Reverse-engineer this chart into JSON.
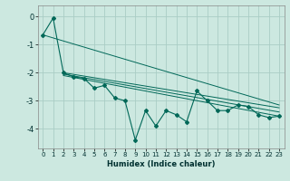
{
  "xlabel": "Humidex (Indice chaleur)",
  "ylabel": "",
  "bg_color": "#cce8e0",
  "grid_color": "#aacdc5",
  "line_color": "#006858",
  "xlim": [
    -0.5,
    23.5
  ],
  "ylim": [
    -4.7,
    0.4
  ],
  "yticks": [
    0,
    -1,
    -2,
    -3,
    -4
  ],
  "xticks": [
    0,
    1,
    2,
    3,
    4,
    5,
    6,
    7,
    8,
    9,
    10,
    11,
    12,
    13,
    14,
    15,
    16,
    17,
    18,
    19,
    20,
    21,
    22,
    23
  ],
  "series": [
    [
      0,
      -0.65
    ],
    [
      1,
      -0.05
    ],
    [
      2,
      -2.0
    ],
    [
      3,
      -2.15
    ],
    [
      4,
      -2.2
    ],
    [
      5,
      -2.55
    ],
    [
      6,
      -2.45
    ],
    [
      7,
      -2.9
    ],
    [
      8,
      -3.0
    ],
    [
      9,
      -4.4
    ],
    [
      10,
      -3.35
    ],
    [
      11,
      -3.9
    ],
    [
      12,
      -3.35
    ],
    [
      13,
      -3.5
    ],
    [
      14,
      -3.75
    ],
    [
      15,
      -2.65
    ],
    [
      16,
      -3.0
    ],
    [
      17,
      -3.35
    ],
    [
      18,
      -3.35
    ],
    [
      19,
      -3.15
    ],
    [
      20,
      -3.2
    ],
    [
      21,
      -3.5
    ],
    [
      22,
      -3.6
    ],
    [
      23,
      -3.55
    ]
  ],
  "linear_series": [
    [
      [
        0,
        -0.65
      ],
      [
        23,
        -3.15
      ]
    ],
    [
      [
        2,
        -2.0
      ],
      [
        23,
        -3.25
      ]
    ],
    [
      [
        2,
        -2.05
      ],
      [
        23,
        -3.4
      ]
    ],
    [
      [
        2,
        -2.1
      ],
      [
        23,
        -3.55
      ]
    ]
  ]
}
